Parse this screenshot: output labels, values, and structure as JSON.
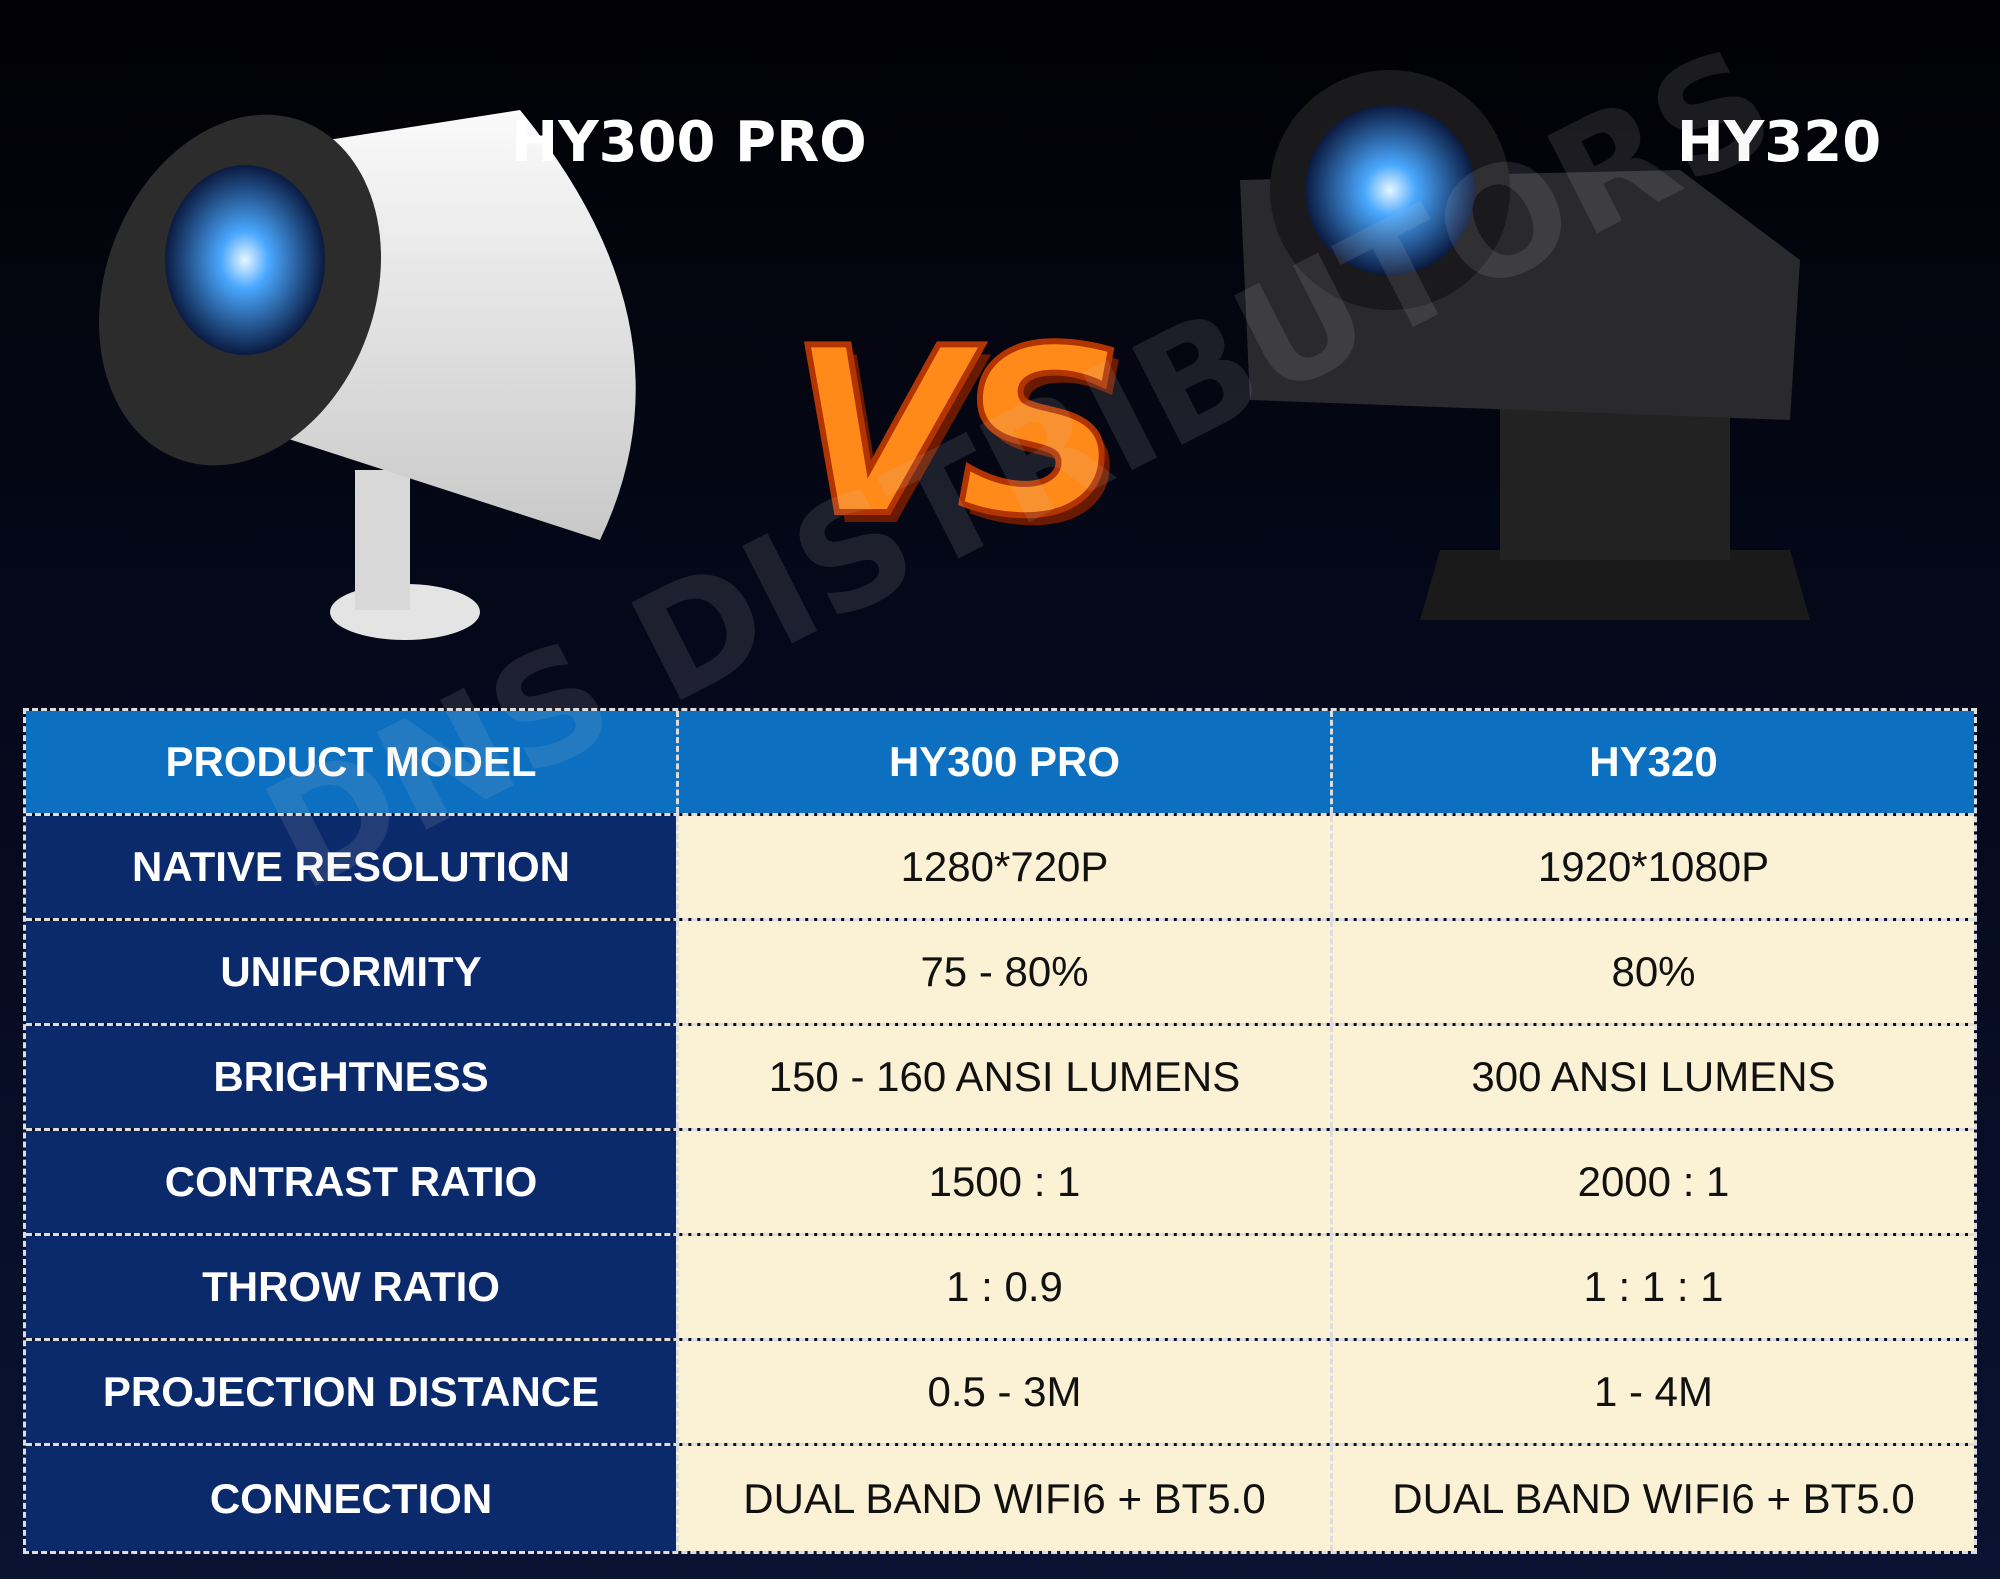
{
  "products": [
    {
      "name": "HY300 PRO"
    },
    {
      "name": "HY320"
    }
  ],
  "vs": "VS",
  "watermark": "DNS DISTRIBUTORS",
  "table": {
    "header": [
      "PRODUCT MODEL",
      "HY300 PRO",
      "HY320"
    ],
    "rows": [
      [
        "NATIVE RESOLUTION",
        "1280*720P",
        "1920*1080P"
      ],
      [
        "UNIFORMITY",
        "75 - 80%",
        "80%"
      ],
      [
        "BRIGHTNESS",
        "150 - 160 ANSI LUMENS",
        "300 ANSI LUMENS"
      ],
      [
        "CONTRAST RATIO",
        "1500 : 1",
        "2000 : 1"
      ],
      [
        "THROW RATIO",
        "1 : 0.9",
        "1 : 1 : 1"
      ],
      [
        "PROJECTION DISTANCE",
        "0.5 - 3M",
        "1 - 4M"
      ],
      [
        "CONNECTION",
        "DUAL BAND WIFI6 + BT5.0",
        "DUAL BAND WIFI6 + BT5.0"
      ]
    ]
  }
}
